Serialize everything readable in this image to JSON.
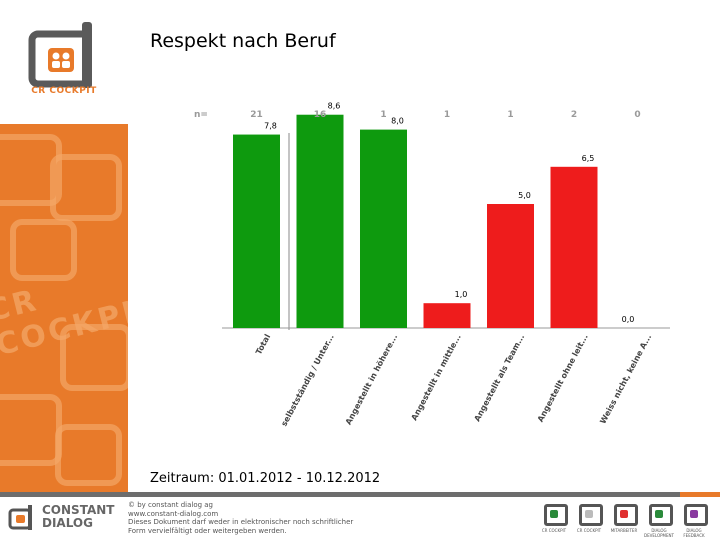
{
  "slide": {
    "title": "Respekt nach Beruf",
    "period": "Zeitraum: 01.01.2012 - 10.12.2012"
  },
  "logo": {
    "text": "CR COCKPIT"
  },
  "sidebar_deco": {
    "text": "CR COCKPIT"
  },
  "chart_data": {
    "type": "bar",
    "title": "",
    "xlabel": "",
    "ylabel": "",
    "ylim": [
      0,
      10
    ],
    "grid": false,
    "n_prefix": "n=",
    "categories": [
      "Total",
      "selbstständig / Unter...",
      "Angestellt in höhere...",
      "Angestellt in mittle...",
      "Angestellt als Team...",
      "Angestellt ohne leit...",
      "Weiss nicht, keine A..."
    ],
    "n": [
      "21",
      "16",
      "1",
      "1",
      "1",
      "2",
      "0"
    ],
    "values": [
      7.8,
      8.6,
      8.0,
      1.0,
      5.0,
      6.5,
      0.0
    ],
    "value_labels": [
      "7,8",
      "8,6",
      "8,0",
      "1,0",
      "5,0",
      "6,5",
      "0,0"
    ],
    "bar_colors": [
      "#0e9a0e",
      "#0e9a0e",
      "#0e9a0e",
      "#ee1c1c",
      "#ee1c1c",
      "#ee1c1c",
      "#ee1c1c"
    ]
  },
  "footer": {
    "brand_line1": "CONSTANT",
    "brand_line2": "DIALOG",
    "copyright": [
      "© by constant dialog ag",
      "www.constant-dialog.com",
      "Dieses Dokument darf weder in elektronischer noch schriftlicher",
      "Form vervielfältigt oder weitergeben werden."
    ],
    "products": [
      {
        "caption": "CR COCKPIT",
        "color": "#2a8a3a"
      },
      {
        "caption": "CR COCKPIT",
        "color": "#bbbbbb"
      },
      {
        "caption": "MITARBEITER",
        "color": "#e03030"
      },
      {
        "caption": "DIALOG DEVELOPMENT",
        "color": "#2a8a3a"
      },
      {
        "caption": "DIALOG FEEDBACK",
        "color": "#8a3aa0"
      }
    ]
  }
}
